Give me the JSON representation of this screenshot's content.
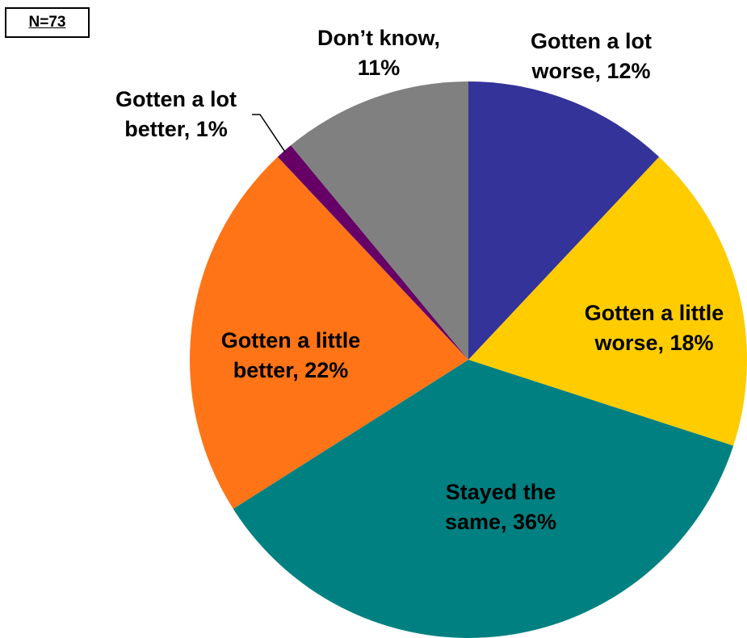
{
  "sample_label": "N=73",
  "chart_data": {
    "type": "pie",
    "start": "12 o'clock",
    "direction": "clockwise",
    "slices": [
      {
        "label": "Gotten a lot worse",
        "value": 12,
        "display": [
          "Gotten a lot",
          "worse, 12%"
        ],
        "color": "#333399"
      },
      {
        "label": "Gotten a little worse",
        "value": 18,
        "display": [
          "Gotten a little",
          "worse, 18%"
        ],
        "color": "#FFCC00"
      },
      {
        "label": "Stayed the same",
        "value": 36,
        "display": [
          "Stayed the",
          "same, 36%"
        ],
        "color": "#008080"
      },
      {
        "label": "Gotten a little better",
        "value": 22,
        "display": [
          "Gotten a little",
          "better, 22%"
        ],
        "color": "#FF7416"
      },
      {
        "label": "Gotten a lot better",
        "value": 1,
        "display": [
          "Gotten a lot",
          "better, 1%"
        ],
        "color": "#660066"
      },
      {
        "label": "Don’t know",
        "value": 11,
        "display": [
          "Don’t know,",
          "11%"
        ],
        "color": "#808080"
      }
    ]
  }
}
